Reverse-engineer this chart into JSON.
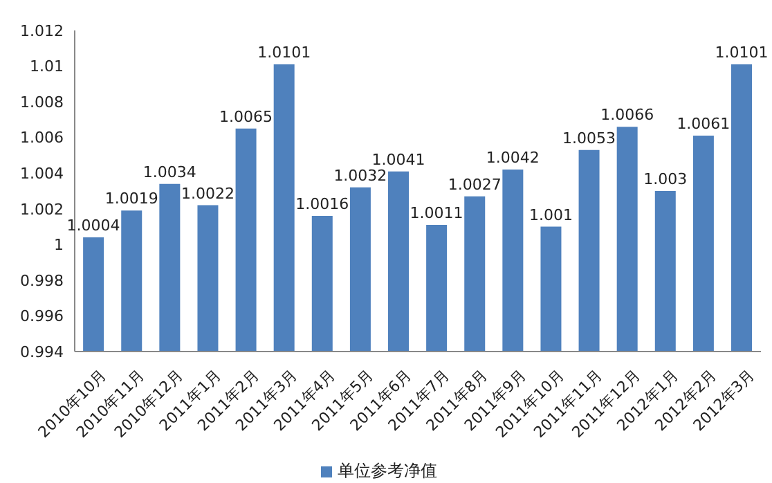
{
  "chart_data": {
    "type": "bar",
    "categories": [
      "2010年10月",
      "2010年11月",
      "2010年12月",
      "2011年1月",
      "2011年2月",
      "2011年3月",
      "2011年4月",
      "2011年5月",
      "2011年6月",
      "2011年7月",
      "2011年8月",
      "2011年9月",
      "2011年10月",
      "2011年11月",
      "2011年12月",
      "2012年1月",
      "2012年2月",
      "2012年3月"
    ],
    "series": [
      {
        "name": "单位参考净值",
        "color": "#4f81bd",
        "values": [
          1.0004,
          1.0019,
          1.0034,
          1.0022,
          1.0065,
          1.0101,
          1.0016,
          1.0032,
          1.0041,
          1.0011,
          1.0027,
          1.0042,
          1.001,
          1.0053,
          1.0066,
          1.003,
          1.0061,
          1.0101
        ]
      }
    ],
    "ylim": [
      0.994,
      1.012
    ],
    "yticks": [
      0.994,
      0.996,
      0.998,
      1,
      1.002,
      1.004,
      1.006,
      1.008,
      1.01,
      1.012
    ],
    "grid": false,
    "legend": "bottom",
    "data_labels": true
  }
}
